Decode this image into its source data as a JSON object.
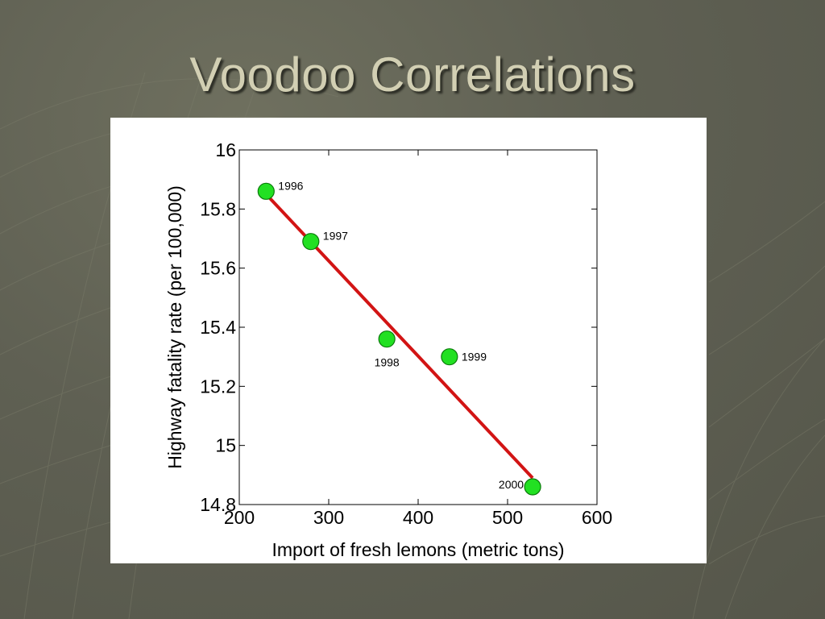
{
  "slide": {
    "title": "Voodoo Correlations"
  },
  "colors": {
    "background": "#5f6053",
    "title": "#d2cfb3",
    "point_fill": "#22e022",
    "point_stroke": "#0a7a0a",
    "fit_line": "#d21414"
  },
  "chart_data": {
    "type": "scatter",
    "title": "",
    "xlabel": "Import of fresh lemons (metric tons)",
    "ylabel": "Highway fatality rate (per 100,000)",
    "xlim": [
      200,
      600
    ],
    "ylim": [
      14.8,
      16
    ],
    "xticks": [
      "200",
      "300",
      "400",
      "500",
      "600"
    ],
    "yticks": [
      "14.8",
      "15",
      "15.2",
      "15.4",
      "15.6",
      "15.8",
      "16"
    ],
    "grid": false,
    "points": [
      {
        "x": 230,
        "y": 15.86,
        "label": "1996",
        "label_pos": "upper-right"
      },
      {
        "x": 280,
        "y": 15.69,
        "label": "1997",
        "label_pos": "upper-right"
      },
      {
        "x": 365,
        "y": 15.36,
        "label": "1998",
        "label_pos": "below"
      },
      {
        "x": 435,
        "y": 15.3,
        "label": "1999",
        "label_pos": "right"
      },
      {
        "x": 528,
        "y": 14.86,
        "label": "2000",
        "label_pos": "left"
      }
    ],
    "fit_line": {
      "x": [
        230,
        528
      ],
      "y": [
        15.85,
        14.89
      ]
    }
  }
}
